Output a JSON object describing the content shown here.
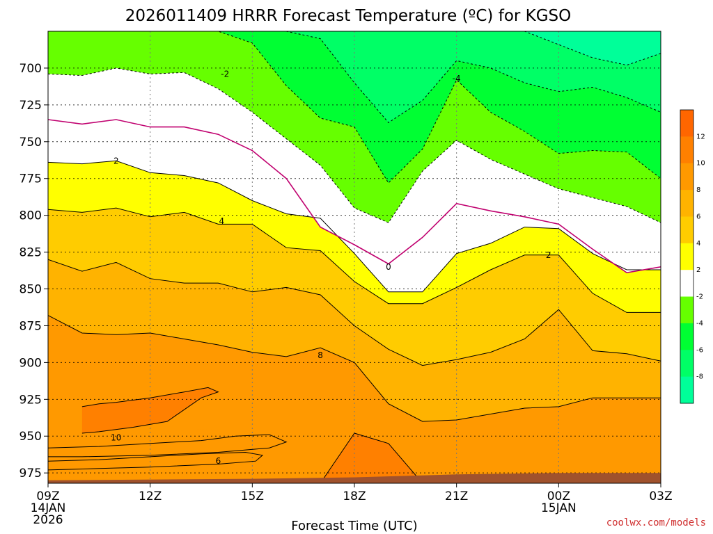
{
  "chart_data": {
    "type": "contour-filled time-height cross section",
    "title": "2026011409 HRRR Forecast Temperature (ºC) for KGSO",
    "xlabel": "Forecast Time (UTC)",
    "ylabel": "",
    "credit": "coolwx.com/models",
    "xlim_hours": [
      0,
      18
    ],
    "ylim_hPa": [
      982,
      675
    ],
    "x_ticks": [
      {
        "hour": 0,
        "label": "09Z",
        "sub1": "14JAN",
        "sub2": "2026"
      },
      {
        "hour": 3,
        "label": "12Z",
        "sub1": "",
        "sub2": ""
      },
      {
        "hour": 6,
        "label": "15Z",
        "sub1": "",
        "sub2": ""
      },
      {
        "hour": 9,
        "label": "18Z",
        "sub1": "",
        "sub2": ""
      },
      {
        "hour": 12,
        "label": "21Z",
        "sub1": "",
        "sub2": ""
      },
      {
        "hour": 15,
        "label": "00Z",
        "sub1": "15JAN",
        "sub2": ""
      },
      {
        "hour": 18,
        "label": "03Z",
        "sub1": "",
        "sub2": ""
      }
    ],
    "y_ticks": [
      {
        "p": 700,
        "label": "700"
      },
      {
        "p": 725,
        "label": "725"
      },
      {
        "p": 750,
        "label": "750"
      },
      {
        "p": 775,
        "label": "775"
      },
      {
        "p": 800,
        "label": "800"
      },
      {
        "p": 825,
        "label": "825"
      },
      {
        "p": 850,
        "label": "850"
      },
      {
        "p": 875,
        "label": "875"
      },
      {
        "p": 900,
        "label": "900"
      },
      {
        "p": 925,
        "label": "925"
      },
      {
        "p": 950,
        "label": "950"
      },
      {
        "p": 975,
        "label": "975"
      }
    ],
    "hours": [
      0,
      1,
      2,
      3,
      4,
      5,
      6,
      7,
      8,
      9,
      10,
      11,
      12,
      13,
      14,
      15,
      16,
      17,
      18
    ],
    "isotherms_hPa": [
      {
        "t": 10,
        "p": [
          948,
          952,
          951,
          948,
          946,
          945,
          982,
          982,
          982,
          982,
          982,
          982,
          982,
          982,
          982,
          982,
          982,
          982,
          982
        ]
      },
      {
        "t": 8,
        "p": [
          868,
          880,
          881,
          880,
          884,
          888,
          893,
          896,
          890,
          900,
          928,
          940,
          939,
          935,
          931,
          930,
          924,
          924,
          924
        ]
      },
      {
        "t": 6,
        "p": [
          830,
          838,
          832,
          843,
          846,
          846,
          852,
          849,
          854,
          875,
          891,
          902,
          898,
          893,
          884,
          864,
          892,
          894,
          899
        ]
      },
      {
        "t": 4,
        "p": [
          796,
          798,
          795,
          801,
          798,
          806,
          806,
          822,
          824,
          845,
          860,
          860,
          849,
          837,
          827,
          827,
          853,
          866,
          866
        ]
      },
      {
        "t": 2,
        "p": [
          764,
          765,
          763,
          771,
          773,
          778,
          790,
          799,
          802,
          826,
          852,
          852,
          826,
          819,
          808,
          809,
          826,
          837,
          837
        ]
      },
      {
        "t": 0,
        "p": [
          735,
          738,
          735,
          740,
          740,
          745,
          756,
          775,
          808,
          820,
          833,
          815,
          792,
          797,
          801,
          806,
          823,
          839,
          835
        ]
      },
      {
        "t": -2,
        "p": [
          704,
          705,
          700,
          704,
          703,
          714,
          730,
          748,
          766,
          795,
          805,
          770,
          749,
          762,
          772,
          782,
          788,
          794,
          805
        ]
      },
      {
        "t": -4,
        "p": [
          675,
          675,
          675,
          675,
          675,
          675,
          683,
          712,
          734,
          740,
          778,
          755,
          708,
          730,
          743,
          758,
          756,
          757,
          775
        ]
      },
      {
        "t": -6,
        "p": [
          675,
          675,
          675,
          675,
          675,
          675,
          675,
          675,
          680,
          710,
          737,
          722,
          695,
          700,
          710,
          716,
          713,
          720,
          730
        ]
      },
      {
        "t": -8,
        "p": [
          675,
          675,
          675,
          675,
          675,
          675,
          675,
          675,
          675,
          675,
          675,
          675,
          675,
          675,
          675,
          684,
          693,
          698,
          690
        ]
      }
    ],
    "extra_contours": [
      {
        "t": 10,
        "h": [
          1.0,
          1.5,
          2.0,
          3.0,
          4.0,
          4.7,
          5.0,
          4.5,
          3.5,
          2.5,
          1.5,
          1.0
        ],
        "p": [
          930,
          928,
          927,
          924,
          920,
          917,
          920,
          924,
          940,
          944,
          947,
          948
        ]
      },
      {
        "t": 8,
        "h": [
          0,
          1.5,
          3.0,
          4.5,
          5.5,
          6.5,
          7.0,
          6.5,
          5.0,
          3.0,
          1.0,
          0
        ],
        "p": [
          958,
          957,
          955,
          953,
          950,
          949,
          954,
          958,
          961,
          963,
          964,
          964
        ]
      },
      {
        "t": 6,
        "h": [
          0,
          1.5,
          3.0,
          4.5,
          5.8,
          6.3,
          6.1,
          5.0,
          3.0,
          1.5,
          0
        ],
        "p": [
          967,
          966,
          964,
          962,
          961,
          963,
          967,
          969,
          971,
          972,
          973
        ]
      },
      {
        "t": 12,
        "h": [
          8.0,
          9.0,
          10.0,
          11.0
        ],
        "p": [
          982,
          948,
          955,
          982
        ]
      }
    ],
    "contour_labels": [
      {
        "text": "-2",
        "hour": 5.2,
        "p": 704
      },
      {
        "text": "-4",
        "hour": 12.0,
        "p": 707
      },
      {
        "text": "2",
        "hour": 2.0,
        "p": 763
      },
      {
        "text": "4",
        "hour": 5.1,
        "p": 804
      },
      {
        "text": "0",
        "hour": 10.0,
        "p": 835
      },
      {
        "text": "2",
        "hour": 14.7,
        "p": 827
      },
      {
        "text": "8",
        "hour": 8.0,
        "p": 895
      },
      {
        "text": "10",
        "hour": 2.0,
        "p": 951
      },
      {
        "text": "6",
        "hour": 5.0,
        "p": 967
      }
    ],
    "colorbar": {
      "ticks": [
        "12",
        "10",
        "8",
        "6",
        "4",
        "2",
        "-2",
        "-4",
        "-6",
        "-8"
      ],
      "bands": [
        {
          "t0": 12,
          "t1": 14,
          "color": "#ff6600"
        },
        {
          "t0": 10,
          "t1": 12,
          "color": "#ff8000"
        },
        {
          "t0": 8,
          "t1": 10,
          "color": "#ff9900"
        },
        {
          "t0": 6,
          "t1": 8,
          "color": "#ffb300"
        },
        {
          "t0": 4,
          "t1": 6,
          "color": "#ffcc00"
        },
        {
          "t0": 2,
          "t1": 4,
          "color": "#ffff00"
        },
        {
          "t0": -2,
          "t1": 2,
          "color": "#ffffff"
        },
        {
          "t0": -4,
          "t1": -2,
          "color": "#66ff00"
        },
        {
          "t0": -6,
          "t1": -4,
          "color": "#00ff33"
        },
        {
          "t0": -8,
          "t1": -6,
          "color": "#00ff66"
        },
        {
          "t0": -10,
          "t1": -8,
          "color": "#00ff99"
        }
      ]
    },
    "ground_color": "#a0522d",
    "zero_line_color": "#c0006f"
  }
}
